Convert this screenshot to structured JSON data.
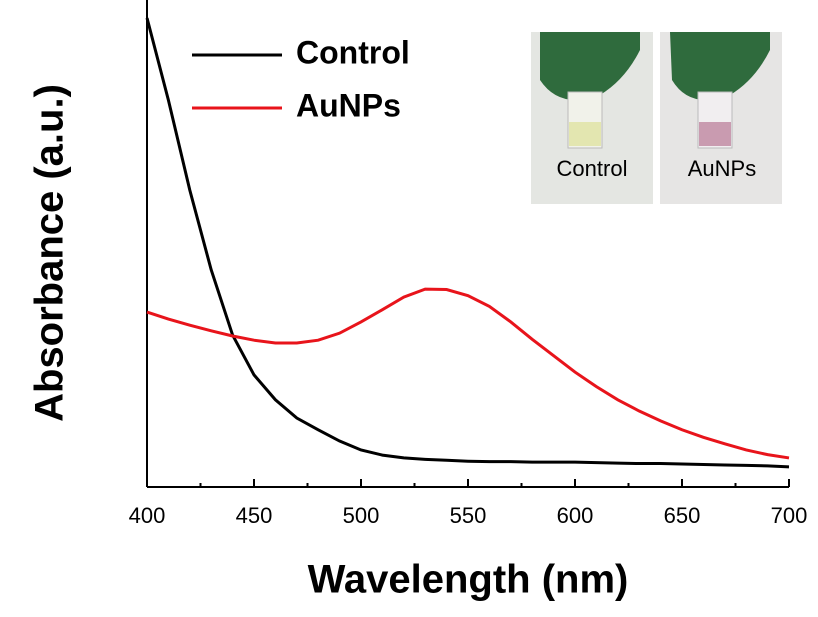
{
  "chart_data": {
    "type": "line",
    "xlabel": "Wavelength (nm)",
    "ylabel": "Absorbance (a.u.)",
    "x": [
      400,
      410,
      420,
      430,
      440,
      450,
      460,
      470,
      480,
      490,
      500,
      510,
      520,
      530,
      540,
      550,
      560,
      570,
      580,
      590,
      600,
      610,
      620,
      630,
      640,
      650,
      660,
      670,
      680,
      690,
      700
    ],
    "series": [
      {
        "name": "Control",
        "color": "#000000",
        "values": [
          1.0,
          0.825,
          0.633,
          0.463,
          0.324,
          0.239,
          0.186,
          0.147,
          0.122,
          0.098,
          0.079,
          0.068,
          0.062,
          0.059,
          0.057,
          0.055,
          0.054,
          0.054,
          0.053,
          0.053,
          0.053,
          0.052,
          0.051,
          0.05,
          0.05,
          0.049,
          0.048,
          0.047,
          0.046,
          0.045,
          0.043
        ]
      },
      {
        "name": "AuNPs",
        "color": "#e8141b",
        "values": [
          0.373,
          0.358,
          0.345,
          0.333,
          0.322,
          0.313,
          0.307,
          0.307,
          0.313,
          0.328,
          0.352,
          0.378,
          0.405,
          0.422,
          0.421,
          0.408,
          0.385,
          0.352,
          0.315,
          0.28,
          0.245,
          0.214,
          0.186,
          0.162,
          0.141,
          0.122,
          0.106,
          0.092,
          0.079,
          0.069,
          0.062
        ]
      }
    ],
    "xlim": [
      400,
      700
    ],
    "xticks": [
      400,
      450,
      500,
      550,
      600,
      650,
      700
    ],
    "ylim": [
      0,
      1
    ],
    "legend": "upper left",
    "inset_labels": [
      "Control",
      "AuNPs"
    ]
  }
}
